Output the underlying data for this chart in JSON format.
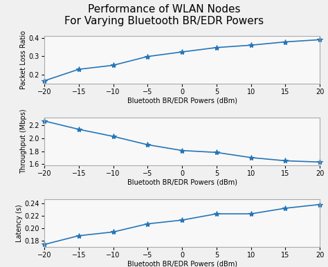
{
  "title": "Performance of WLAN Nodes\nFor Varying Bluetooth BR/EDR Powers",
  "x": [
    -20,
    -15,
    -10,
    -5,
    0,
    5,
    10,
    15,
    20
  ],
  "xlabel": "Bluetooth BR/EDR Powers (dBm)",
  "packet_loss": [
    0.165,
    0.228,
    0.25,
    0.298,
    0.323,
    0.347,
    0.36,
    0.378,
    0.39
  ],
  "throughput": [
    2.27,
    2.14,
    2.03,
    1.9,
    1.81,
    1.78,
    1.7,
    1.65,
    1.63
  ],
  "latency": [
    0.174,
    0.188,
    0.194,
    0.207,
    0.213,
    0.223,
    0.223,
    0.232,
    0.238
  ],
  "ylabel1": "Packet Loss Ratio",
  "ylabel2": "Throughput (Mbps)",
  "ylabel3": "Latency (s)",
  "ylim1": [
    0.15,
    0.41
  ],
  "ylim2": [
    1.58,
    2.32
  ],
  "ylim3": [
    0.17,
    0.246
  ],
  "yticks1": [
    0.2,
    0.3,
    0.4
  ],
  "yticks2": [
    1.6,
    1.8,
    2.0,
    2.2
  ],
  "yticks3": [
    0.18,
    0.2,
    0.22,
    0.24
  ],
  "line_color": "#2475b8",
  "marker": "*",
  "markersize": 6,
  "linewidth": 1.2,
  "title_fontsize": 11,
  "label_fontsize": 7,
  "tick_fontsize": 7,
  "fig_facecolor": "#f0f0f0"
}
